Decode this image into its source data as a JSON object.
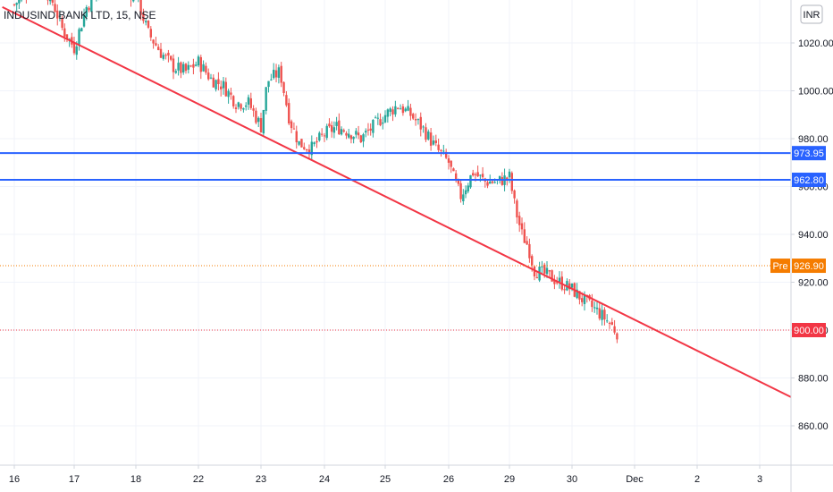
{
  "chart_data": {
    "type": "candlestick",
    "title": "INDUSIND BANK LTD, 15, NSE",
    "currency_label": "INR",
    "ylim": [
      840,
      1045
    ],
    "y_ticks": [
      860,
      880,
      900,
      920,
      940,
      960,
      980,
      1000,
      1020
    ],
    "x_ticks": [
      "16",
      "17",
      "18",
      "22",
      "23",
      "24",
      "25",
      "26",
      "29",
      "30",
      "Dec",
      "2",
      "3"
    ],
    "grid": true,
    "colors": {
      "up": "#26a69a",
      "down": "#ef5350",
      "trendline": "#f23645",
      "hline": "#2962ff",
      "premarket": "#f57c00",
      "last": "#f23645"
    },
    "horizontal_lines": [
      {
        "label": "973.95",
        "value": 973.95
      },
      {
        "label": "962.80",
        "value": 962.8
      }
    ],
    "premarket": {
      "tag": "Pre",
      "label": "926.90",
      "value": 926.9
    },
    "last_price": {
      "label": "900.00",
      "value": 900.0
    },
    "trendline": {
      "start": {
        "x": -0.2,
        "y": 1035
      },
      "end": {
        "x": 12.5,
        "y": 872
      }
    },
    "price_path": [
      [
        0.0,
        1036
      ],
      [
        0.3,
        1044
      ],
      [
        0.6,
        1040
      ],
      [
        0.8,
        1026
      ],
      [
        1.0,
        1018
      ],
      [
        1.2,
        1035
      ],
      [
        1.5,
        1045
      ],
      [
        1.8,
        1042
      ],
      [
        2.0,
        1040
      ],
      [
        2.2,
        1024
      ],
      [
        2.4,
        1016
      ],
      [
        2.6,
        1010
      ],
      [
        2.8,
        1008
      ],
      [
        3.0,
        1012
      ],
      [
        3.2,
        1005
      ],
      [
        3.4,
        1002
      ],
      [
        3.6,
        995
      ],
      [
        3.8,
        995
      ],
      [
        4.0,
        985
      ],
      [
        4.1,
        1004
      ],
      [
        4.3,
        1008
      ],
      [
        4.45,
        988
      ],
      [
        4.6,
        978
      ],
      [
        4.8,
        976
      ],
      [
        5.0,
        982
      ],
      [
        5.2,
        985
      ],
      [
        5.4,
        983
      ],
      [
        5.6,
        980
      ],
      [
        5.8,
        985
      ],
      [
        6.0,
        990
      ],
      [
        6.2,
        994
      ],
      [
        6.4,
        990
      ],
      [
        6.6,
        984
      ],
      [
        6.8,
        976
      ],
      [
        7.0,
        970
      ],
      [
        7.1,
        962
      ],
      [
        7.2,
        956
      ],
      [
        7.4,
        966
      ],
      [
        7.6,
        962
      ],
      [
        7.8,
        962
      ],
      [
        8.0,
        964
      ],
      [
        8.1,
        950
      ],
      [
        8.2,
        940
      ],
      [
        8.3,
        935
      ],
      [
        8.4,
        925
      ],
      [
        8.6,
        923
      ],
      [
        8.8,
        920
      ],
      [
        9.0,
        917
      ],
      [
        9.2,
        912
      ],
      [
        9.4,
        908
      ],
      [
        9.6,
        903
      ],
      [
        9.72,
        899
      ]
    ]
  }
}
